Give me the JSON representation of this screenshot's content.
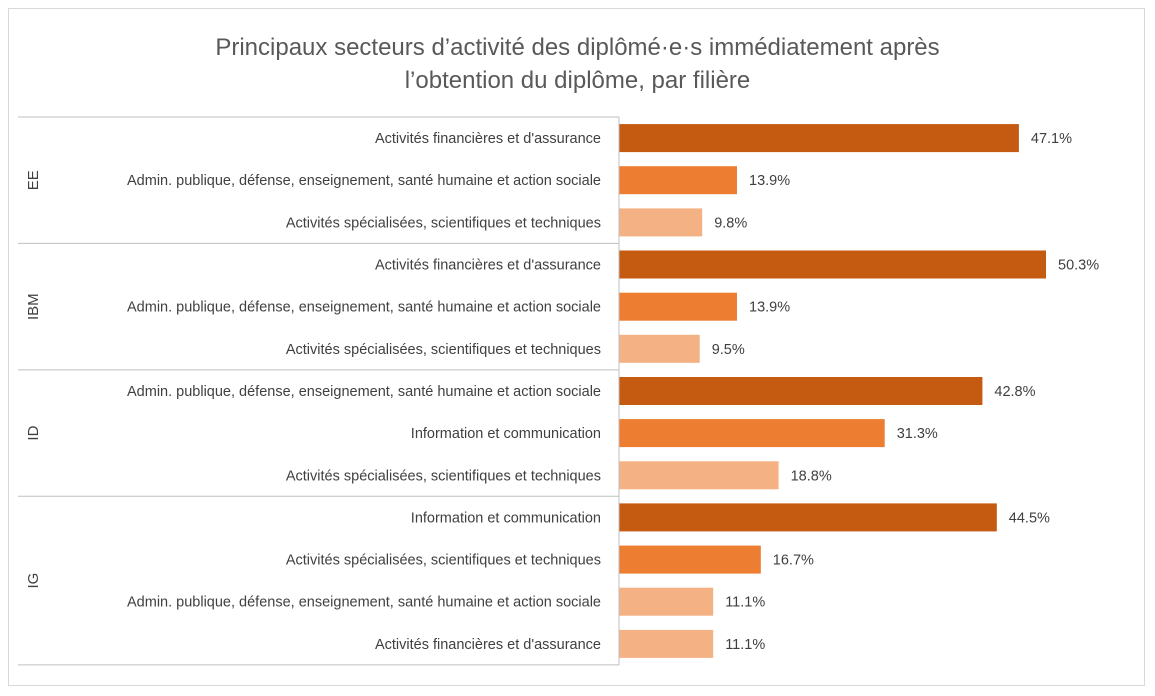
{
  "chart_data": {
    "type": "bar",
    "orientation": "horizontal",
    "title": "Principaux secteurs d’activité des diplômé·e·s immédiatement après\nl’obtention du diplôme, par filière",
    "value_format": "percent_1dp",
    "xlim": [
      0,
      60
    ],
    "grid": false,
    "legend": "none",
    "colors": [
      "#c55a11",
      "#ed7d31",
      "#f4b183"
    ],
    "groups": [
      {
        "name": "EE",
        "bars": [
          {
            "label": "Activités financières et d'assurance",
            "value": 47.1
          },
          {
            "label": "Admin. publique, défense, enseignement, santé humaine et action sociale",
            "value": 13.9
          },
          {
            "label": "Activités spécialisées, scientifiques et techniques",
            "value": 9.8
          }
        ]
      },
      {
        "name": "IBM",
        "bars": [
          {
            "label": "Activités financières et d'assurance",
            "value": 50.3
          },
          {
            "label": "Admin. publique, défense, enseignement, santé humaine et action sociale",
            "value": 13.9
          },
          {
            "label": "Activités spécialisées, scientifiques et techniques",
            "value": 9.5
          }
        ]
      },
      {
        "name": "ID",
        "bars": [
          {
            "label": "Admin. publique, défense, enseignement, santé humaine et action sociale",
            "value": 42.8
          },
          {
            "label": "Information et communication ",
            "value": 31.3
          },
          {
            "label": "Activités spécialisées, scientifiques et techniques",
            "value": 18.8
          }
        ]
      },
      {
        "name": "IG",
        "bars": [
          {
            "label": "Information et communication",
            "value": 44.5
          },
          {
            "label": "Activités spécialisées, scientifiques et techniques",
            "value": 16.7
          },
          {
            "label": "Admin. publique, défense, enseignement, santé humaine et action sociale",
            "value": 11.1
          },
          {
            "label": "Activités financières et d'assurance",
            "value": 11.1
          }
        ]
      }
    ]
  }
}
